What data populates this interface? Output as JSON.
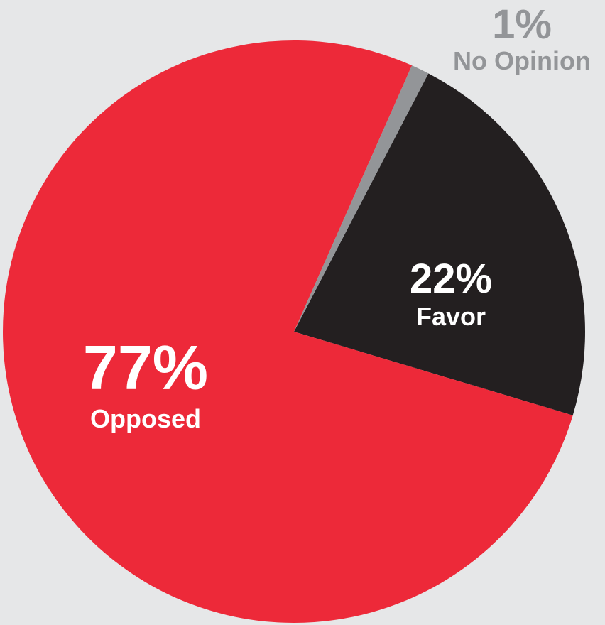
{
  "chart_data": {
    "type": "pie",
    "slices": [
      {
        "label": "Favor",
        "value": 22,
        "value_label": "22%",
        "color": "#231f20",
        "label_color": "#ffffff"
      },
      {
        "label": "Opposed",
        "value": 77,
        "value_label": "77%",
        "color": "#ed2939",
        "label_color": "#ffffff"
      },
      {
        "label": "No Opinion",
        "value": 1,
        "value_label": "1%",
        "color": "#939598",
        "label_color": "#939598"
      }
    ],
    "background": "#e6e7e8"
  }
}
